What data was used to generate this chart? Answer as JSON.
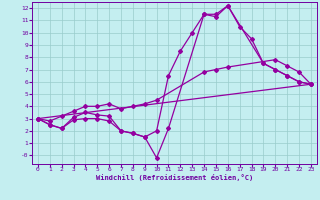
{
  "xlabel": "Windchill (Refroidissement éolien,°C)",
  "xlim": [
    -0.5,
    23.5
  ],
  "ylim": [
    -0.7,
    12.5
  ],
  "yticks": [
    0,
    1,
    2,
    3,
    4,
    5,
    6,
    7,
    8,
    9,
    10,
    11,
    12
  ],
  "ytick_labels": [
    "-0",
    "1",
    "2",
    "3",
    "4",
    "5",
    "6",
    "7",
    "8",
    "9",
    "10",
    "11",
    "12"
  ],
  "xticks": [
    0,
    1,
    2,
    3,
    4,
    5,
    6,
    7,
    8,
    9,
    10,
    11,
    12,
    13,
    14,
    15,
    16,
    17,
    18,
    19,
    20,
    21,
    22,
    23
  ],
  "line_color": "#9400a0",
  "bg_color": "#c4eef0",
  "grid_color": "#99cccc",
  "line1_x": [
    0,
    1,
    2,
    3,
    4,
    5,
    6,
    7,
    8,
    9,
    10,
    11,
    12,
    13,
    14,
    15,
    16,
    17,
    18,
    19,
    20,
    21,
    22,
    23
  ],
  "line1_y": [
    3.0,
    2.5,
    2.2,
    3.1,
    3.5,
    3.3,
    3.2,
    2.0,
    1.8,
    1.5,
    2.0,
    6.5,
    8.5,
    10.0,
    11.5,
    11.5,
    12.2,
    10.5,
    9.5,
    7.5,
    7.0,
    6.5,
    6.0,
    5.8
  ],
  "line2_x": [
    0,
    1,
    2,
    3,
    4,
    5,
    6,
    7,
    8,
    9,
    10,
    14,
    15,
    16,
    20,
    21,
    22,
    23
  ],
  "line2_y": [
    3.0,
    2.8,
    3.2,
    3.6,
    4.0,
    4.0,
    4.2,
    3.8,
    4.0,
    4.2,
    4.5,
    6.8,
    7.0,
    7.2,
    7.8,
    7.3,
    6.8,
    5.8
  ],
  "line3_x": [
    0,
    23
  ],
  "line3_y": [
    3.0,
    5.8
  ],
  "line4_x": [
    0,
    1,
    2,
    3,
    4,
    5,
    6,
    7,
    8,
    9,
    10,
    11,
    14,
    15,
    16,
    19,
    20,
    21,
    22,
    23
  ],
  "line4_y": [
    3.0,
    2.5,
    2.2,
    2.9,
    3.0,
    3.0,
    2.8,
    2.0,
    1.8,
    1.5,
    -0.2,
    2.2,
    11.5,
    11.3,
    12.2,
    7.5,
    7.0,
    6.5,
    6.0,
    5.8
  ]
}
